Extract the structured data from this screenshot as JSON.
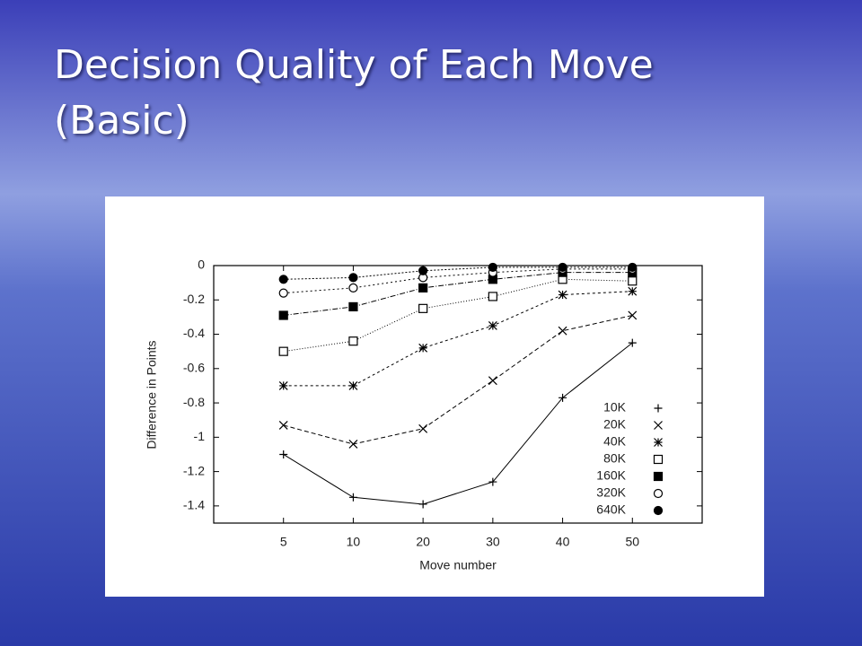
{
  "chart_data": {
    "type": "line",
    "title": "Decision Quality of Each Move (Basic)",
    "x_label": "Move number",
    "y_label": "Difference in Points",
    "categories": [
      "5",
      "10",
      "20",
      "30",
      "40",
      "50"
    ],
    "ylim": [
      -1.5,
      0
    ],
    "yticks": [
      0,
      -0.2,
      -0.4,
      -0.6,
      -0.8,
      -1,
      -1.2,
      -1.4
    ],
    "grid": false,
    "legend": "lower-right",
    "series": [
      {
        "name": "10K",
        "color": "#000000",
        "marker": "plus",
        "dash": "none",
        "values": [
          -1.1,
          -1.35,
          -1.39,
          -1.26,
          -0.77,
          -0.45
        ]
      },
      {
        "name": "20K",
        "color": "#000000",
        "marker": "cross",
        "dash": "5 3",
        "values": [
          -0.93,
          -1.04,
          -0.95,
          -0.67,
          -0.38,
          -0.29
        ]
      },
      {
        "name": "40K",
        "color": "#000000",
        "marker": "star",
        "dash": "3 3",
        "values": [
          -0.7,
          -0.7,
          -0.48,
          -0.35,
          -0.17,
          -0.15
        ]
      },
      {
        "name": "80K",
        "color": "#000000",
        "marker": "square",
        "dash": "1 2",
        "values": [
          -0.5,
          -0.44,
          -0.25,
          -0.18,
          -0.08,
          -0.09
        ]
      },
      {
        "name": "160K",
        "color": "#000000",
        "marker": "filled-square",
        "dash": "6 2 1 2",
        "values": [
          -0.29,
          -0.24,
          -0.13,
          -0.08,
          -0.04,
          -0.04
        ]
      },
      {
        "name": "320K",
        "color": "#000000",
        "marker": "circle",
        "dash": "2 3",
        "values": [
          -0.16,
          -0.13,
          -0.07,
          -0.04,
          -0.02,
          -0.02
        ]
      },
      {
        "name": "640K",
        "color": "#000000",
        "marker": "filled-circle",
        "dash": "2 2",
        "values": [
          -0.08,
          -0.07,
          -0.03,
          -0.01,
          -0.01,
          -0.01
        ]
      }
    ]
  }
}
